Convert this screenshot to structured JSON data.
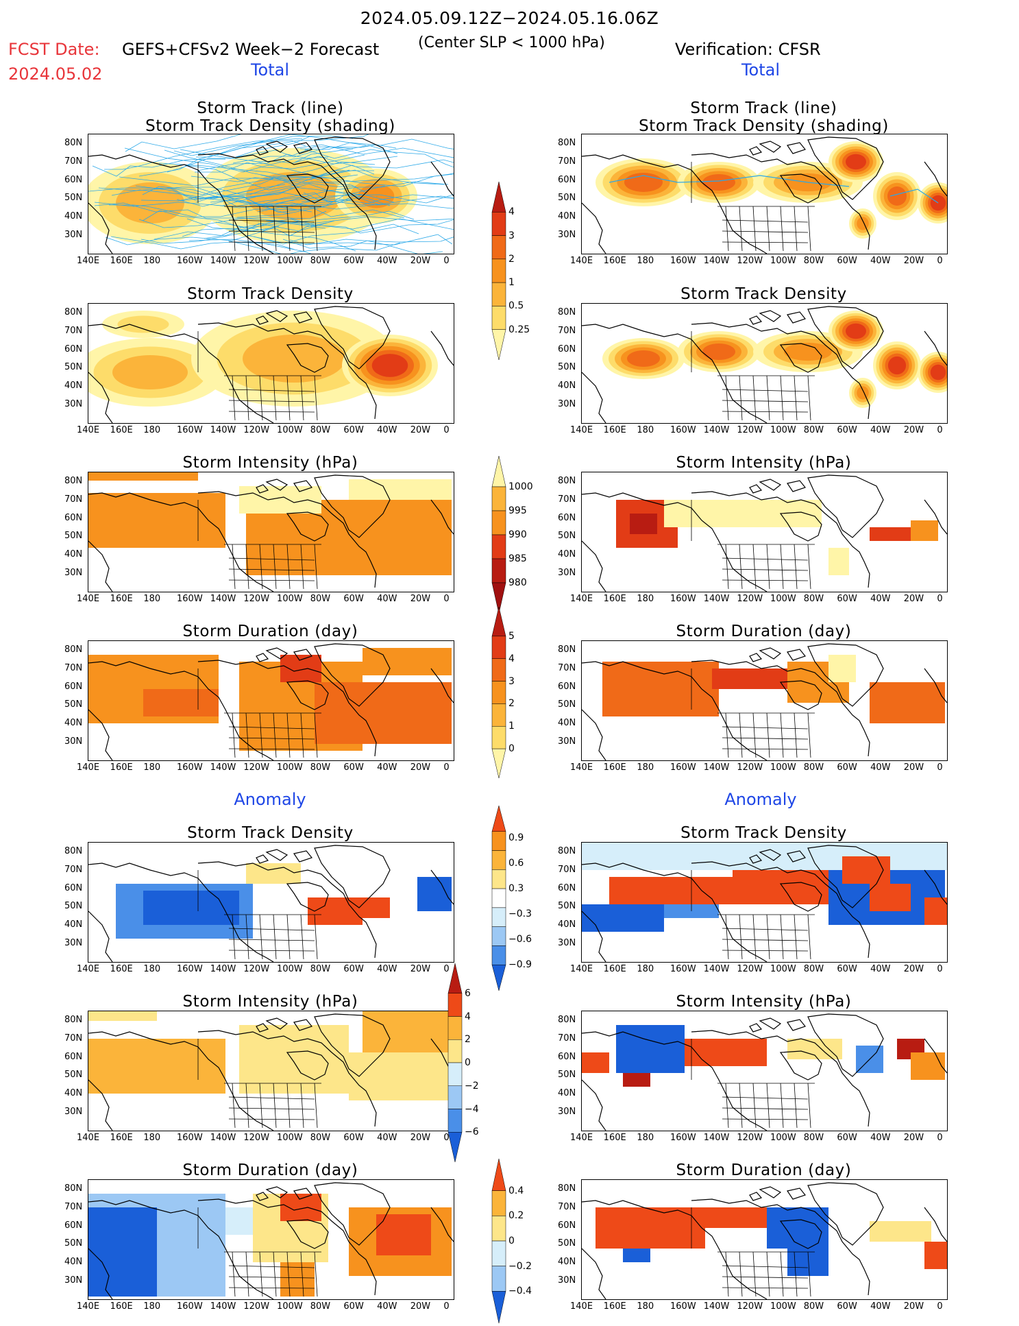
{
  "header": {
    "title": "2024.05.09.12Z−2024.05.16.06Z",
    "fcst_label": "FCST Date:",
    "model": "GEFS+CFSv2 Week−2 Forecast",
    "criterion": "(Center SLP < 1000 hPa)",
    "verification": "Verification: CFSR",
    "fcst_date": "2024.05.02"
  },
  "sections": {
    "total": "Total",
    "anomaly": "Anomaly"
  },
  "panel_titles": {
    "track_line": "Storm Track (line)",
    "track_shading": "Storm Track Density (shading)",
    "density": "Storm Track Density",
    "intensity": "Storm Intensity (hPa)",
    "duration": "Storm Duration (day)"
  },
  "axes": {
    "lon": [
      "140E",
      "160E",
      "180",
      "160W",
      "140W",
      "120W",
      "100W",
      "80W",
      "60W",
      "40W",
      "20W",
      "0"
    ],
    "lat": [
      "80N",
      "70N",
      "60N",
      "50N",
      "40N",
      "30N"
    ]
  },
  "colorbars": {
    "density_total": [
      "4",
      "3",
      "2",
      "1",
      "0.5",
      "0.25"
    ],
    "intensity_total": [
      "1000",
      "995",
      "990",
      "985",
      "980"
    ],
    "duration_total": [
      "5",
      "4",
      "3",
      "2",
      "1",
      "0"
    ],
    "density_anom": [
      "0.9",
      "0.6",
      "0.3",
      "−0.3",
      "−0.6",
      "−0.9"
    ],
    "intensity_anom": [
      "6",
      "4",
      "2",
      "0",
      "−2",
      "−4",
      "−6"
    ],
    "duration_anom": [
      "0.4",
      "0.2",
      "0",
      "−0.2",
      "−0.4"
    ]
  },
  "palette": {
    "warm": [
      "#fff5a8",
      "#fddc6a",
      "#fbb43a",
      "#f7921e",
      "#f06a18",
      "#e23c16",
      "#b81c12"
    ],
    "anom": [
      "#1a5fd8",
      "#4a8fe8",
      "#9cc8f4",
      "#d6eefa",
      "#ffffff",
      "#fde68a",
      "#fbb43a",
      "#f7921e",
      "#ee4a18"
    ],
    "track_line": "#2aa8e8"
  }
}
